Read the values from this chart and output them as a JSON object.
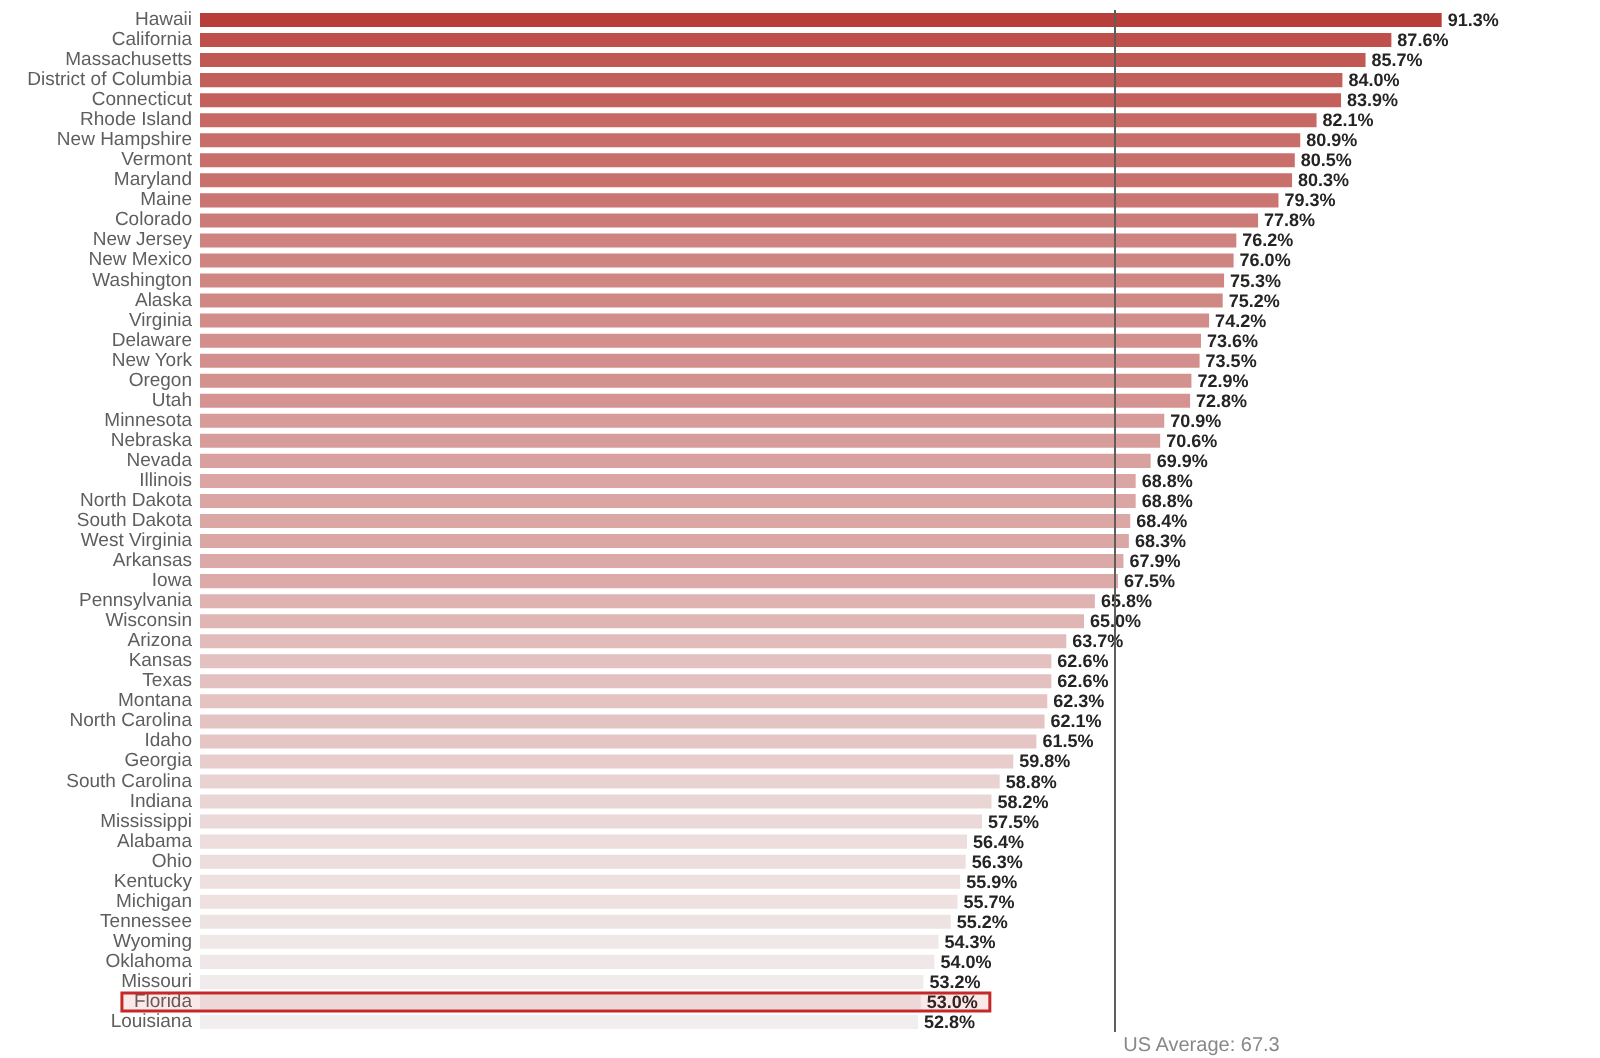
{
  "chart_data": {
    "type": "bar",
    "orientation": "horizontal",
    "categories": [
      "Hawaii",
      "California",
      "Massachusetts",
      "District of Columbia",
      "Connecticut",
      "Rhode Island",
      "New Hampshire",
      "Vermont",
      "Maryland",
      "Maine",
      "Colorado",
      "New Jersey",
      "New Mexico",
      "Washington",
      "Alaska",
      "Virginia",
      "Delaware",
      "New York",
      "Oregon",
      "Utah",
      "Minnesota",
      "Nebraska",
      "Nevada",
      "Illinois",
      "North Dakota",
      "South Dakota",
      "West Virginia",
      "Arkansas",
      "Iowa",
      "Pennsylvania",
      "Wisconsin",
      "Arizona",
      "Kansas",
      "Texas",
      "Montana",
      "North Carolina",
      "Idaho",
      "Georgia",
      "South Carolina",
      "Indiana",
      "Mississippi",
      "Alabama",
      "Ohio",
      "Kentucky",
      "Michigan",
      "Tennessee",
      "Wyoming",
      "Oklahoma",
      "Missouri",
      "Florida",
      "Louisiana"
    ],
    "values": [
      91.3,
      87.6,
      85.7,
      84.0,
      83.9,
      82.1,
      80.9,
      80.5,
      80.3,
      79.3,
      77.8,
      76.2,
      76.0,
      75.3,
      75.2,
      74.2,
      73.6,
      73.5,
      72.9,
      72.8,
      70.9,
      70.6,
      69.9,
      68.8,
      68.8,
      68.4,
      68.3,
      67.9,
      67.5,
      65.8,
      65.0,
      63.7,
      62.6,
      62.6,
      62.3,
      62.1,
      61.5,
      59.8,
      58.8,
      58.2,
      57.5,
      56.4,
      56.3,
      55.9,
      55.7,
      55.2,
      54.3,
      54.0,
      53.2,
      53.0,
      52.8
    ],
    "value_labels": [
      "91.3%",
      "87.6%",
      "85.7%",
      "84.0%",
      "83.9%",
      "82.1%",
      "80.9%",
      "80.5%",
      "80.3%",
      "79.3%",
      "77.8%",
      "76.2%",
      "76.0%",
      "75.3%",
      "75.2%",
      "74.2%",
      "73.6%",
      "73.5%",
      "72.9%",
      "72.8%",
      "70.9%",
      "70.6%",
      "69.9%",
      "68.8%",
      "68.8%",
      "68.4%",
      "68.3%",
      "67.9%",
      "67.5%",
      "65.8%",
      "65.0%",
      "63.7%",
      "62.6%",
      "62.6%",
      "62.3%",
      "62.1%",
      "61.5%",
      "59.8%",
      "58.8%",
      "58.2%",
      "57.5%",
      "56.4%",
      "56.3%",
      "55.9%",
      "55.7%",
      "55.2%",
      "54.3%",
      "54.0%",
      "53.2%",
      "53.0%",
      "52.8%"
    ],
    "colors": [
      "#b83e39",
      "#be4f4a",
      "#c05853",
      "#c35f5b",
      "#c3605c",
      "#c66864",
      "#c86e6a",
      "#c86f6c",
      "#c9706d",
      "#ca7571",
      "#cc7c78",
      "#cf8380",
      "#cf8481",
      "#d08784",
      "#d08885",
      "#d28c89",
      "#d38f8c",
      "#d38f8d",
      "#d4928f",
      "#d49390",
      "#d79b99",
      "#d79d9a",
      "#d8a09e",
      "#daa5a3",
      "#daa5a3",
      "#daa7a5",
      "#dba7a5",
      "#dba9a7",
      "#dcaba9",
      "#deb3b1",
      "#e0b6b5",
      "#e2bcbb",
      "#e3c1c0",
      "#e3c1c0",
      "#e4c3c1",
      "#e4c4c2",
      "#e5c6c5",
      "#e7cecd",
      "#e9d3d2",
      "#ead5d5",
      "#ebd8d8",
      "#eddddd",
      "#eddede",
      "#ede0df",
      "#eee1e0",
      "#eee3e3",
      "#f0e7e7",
      "#f0e8e8",
      "#f1ecec",
      "#f2eded",
      "#f2eeee"
    ],
    "tick_labels": "y",
    "ref_lines": [
      {
        "axis": "x",
        "value": 67.3,
        "label": "US Average: 67.3",
        "color": "#605e5c"
      }
    ],
    "bands": [
      {
        "axis": "y",
        "from": "Florida",
        "to": "Florida",
        "color": "#c62828"
      }
    ]
  }
}
